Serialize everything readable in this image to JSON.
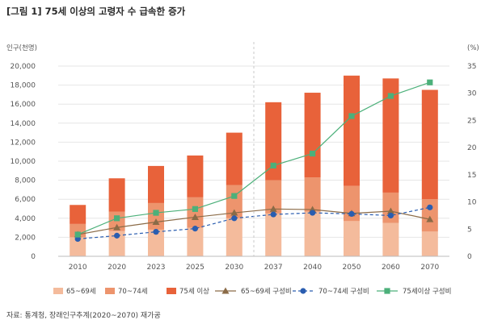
{
  "title": "[그림 1] 75세 이상의 고령자 수 급속한 증가",
  "source": "자료: 통계청, 장래인구추계(2020~2070) 재가공",
  "chart_data": {
    "type": "bar",
    "stacked": true,
    "categories": [
      "2010",
      "2020",
      "2023",
      "2025",
      "2030",
      "2037",
      "2040",
      "2050",
      "2060",
      "2070"
    ],
    "ylabel_left": "인구(천명)",
    "ylabel_right": "(%)",
    "ylim_left": [
      0,
      20000
    ],
    "yticks_left": [
      "0",
      "2,000",
      "4,000",
      "6,000",
      "8,000",
      "10,000",
      "12,000",
      "14,000",
      "16,000",
      "18,000",
      "20,000"
    ],
    "ylim_right": [
      0,
      35
    ],
    "yticks_right": [
      "0",
      "5",
      "10",
      "15",
      "20",
      "25",
      "30",
      "35"
    ],
    "divider_after_index": 4,
    "bar_series": [
      {
        "name": "65~69세",
        "color": "#f4bb9c",
        "values": [
          2000,
          2650,
          2800,
          3000,
          4000,
          4500,
          4700,
          3700,
          3500,
          2600
        ]
      },
      {
        "name": "70~74세",
        "color": "#ed946d",
        "values": [
          1400,
          2050,
          2800,
          3200,
          3500,
          3500,
          3600,
          3700,
          3200,
          3400
        ]
      },
      {
        "name": "75세 이상",
        "color": "#e8623a",
        "values": [
          2000,
          3500,
          3900,
          4400,
          5500,
          8200,
          8900,
          11600,
          12000,
          11500
        ]
      }
    ],
    "line_series": [
      {
        "name": "65~69세 구성비",
        "color": "#8b6b47",
        "marker": "triangle",
        "dash": "solid",
        "values": [
          4.0,
          5.3,
          6.3,
          7.2,
          8.0,
          8.7,
          8.6,
          7.9,
          8.3,
          6.8
        ]
      },
      {
        "name": "70~74세 구성비",
        "color": "#2a5db0",
        "marker": "circle",
        "dash": "dashed",
        "values": [
          3.2,
          3.8,
          4.5,
          5.1,
          7.0,
          7.7,
          8.0,
          7.8,
          7.5,
          9.0
        ]
      },
      {
        "name": "75세이상 구성비",
        "color": "#4cb07a",
        "marker": "square",
        "dash": "solid",
        "values": [
          4.0,
          7.0,
          8.0,
          8.7,
          11.1,
          16.7,
          18.9,
          25.8,
          29.5,
          32.0
        ]
      }
    ]
  }
}
